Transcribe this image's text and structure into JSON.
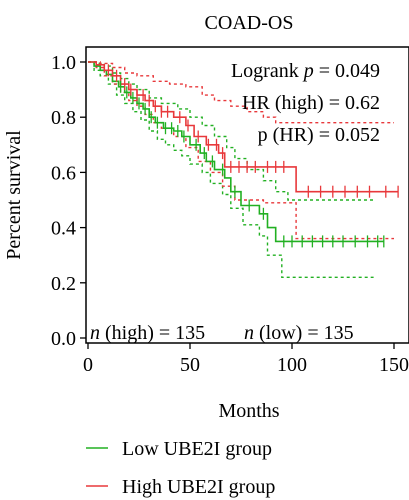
{
  "chart_data": {
    "type": "line",
    "title": "COAD-OS",
    "xlabel": "Months",
    "ylabel": "Percent survival",
    "xlim": [
      0,
      155
    ],
    "ylim": [
      0.0,
      1.02
    ],
    "xticks": [
      0,
      50,
      100,
      150
    ],
    "yticks": [
      0.0,
      0.2,
      0.4,
      0.6,
      0.8,
      1.0
    ],
    "ytick_labels": [
      "0.0",
      "0.2",
      "0.4",
      "0.6",
      "0.8",
      "1.0"
    ],
    "grid": false,
    "legend_position": "bottom",
    "annotations": {
      "logrank_prefix": "Logrank ",
      "logrank_p": "p",
      "logrank_value": " = 0.049",
      "hr": "HR (high) = 0.62",
      "p_hr": "p (HR) = 0.052",
      "n_high_n": "n",
      "n_high_text": " (high) = 135",
      "n_low_n": "n",
      "n_low_text": " (low) = 135"
    },
    "series": [
      {
        "name": "Low UBE2I group",
        "color": "#22b022",
        "survival": [
          [
            0,
            1.0
          ],
          [
            3,
            0.985
          ],
          [
            6,
            0.97
          ],
          [
            9,
            0.955
          ],
          [
            12,
            0.93
          ],
          [
            15,
            0.91
          ],
          [
            18,
            0.89
          ],
          [
            21,
            0.87
          ],
          [
            24,
            0.85
          ],
          [
            27,
            0.83
          ],
          [
            30,
            0.8
          ],
          [
            33,
            0.78
          ],
          [
            37,
            0.76
          ],
          [
            42,
            0.75
          ],
          [
            46,
            0.73
          ],
          [
            50,
            0.7
          ],
          [
            55,
            0.67
          ],
          [
            58,
            0.64
          ],
          [
            62,
            0.61
          ],
          [
            67,
            0.58
          ],
          [
            70,
            0.53
          ],
          [
            75,
            0.48
          ],
          [
            84,
            0.45
          ],
          [
            88,
            0.4
          ],
          [
            92,
            0.35
          ],
          [
            145,
            0.35
          ]
        ],
        "ci_upper": [
          [
            0,
            1.0
          ],
          [
            4,
            0.995
          ],
          [
            8,
            0.985
          ],
          [
            12,
            0.96
          ],
          [
            16,
            0.94
          ],
          [
            20,
            0.92
          ],
          [
            24,
            0.9
          ],
          [
            30,
            0.87
          ],
          [
            36,
            0.85
          ],
          [
            44,
            0.83
          ],
          [
            50,
            0.8
          ],
          [
            56,
            0.77
          ],
          [
            62,
            0.73
          ],
          [
            68,
            0.69
          ],
          [
            72,
            0.65
          ],
          [
            78,
            0.61
          ],
          [
            86,
            0.57
          ],
          [
            92,
            0.53
          ],
          [
            98,
            0.5
          ],
          [
            140,
            0.5
          ]
        ],
        "ci_lower": [
          [
            0,
            1.0
          ],
          [
            3,
            0.97
          ],
          [
            6,
            0.95
          ],
          [
            10,
            0.92
          ],
          [
            14,
            0.88
          ],
          [
            18,
            0.85
          ],
          [
            22,
            0.82
          ],
          [
            26,
            0.79
          ],
          [
            30,
            0.75
          ],
          [
            34,
            0.72
          ],
          [
            38,
            0.7
          ],
          [
            42,
            0.68
          ],
          [
            46,
            0.66
          ],
          [
            50,
            0.63
          ],
          [
            56,
            0.6
          ],
          [
            60,
            0.56
          ],
          [
            66,
            0.52
          ],
          [
            70,
            0.47
          ],
          [
            76,
            0.41
          ],
          [
            84,
            0.37
          ],
          [
            88,
            0.3
          ],
          [
            95,
            0.22
          ],
          [
            140,
            0.22
          ]
        ],
        "censor_x": [
          16,
          19,
          22,
          25,
          28,
          31,
          34,
          38,
          41,
          44,
          47,
          53,
          57,
          61,
          66,
          72,
          79,
          86,
          96,
          100,
          105,
          110,
          115,
          120,
          125,
          131,
          137,
          142,
          145
        ]
      },
      {
        "name": "High UBE2I group",
        "color": "#e8383b",
        "survival": [
          [
            0,
            1.0
          ],
          [
            4,
            0.99
          ],
          [
            8,
            0.97
          ],
          [
            12,
            0.95
          ],
          [
            16,
            0.92
          ],
          [
            20,
            0.9
          ],
          [
            24,
            0.88
          ],
          [
            28,
            0.86
          ],
          [
            32,
            0.84
          ],
          [
            36,
            0.82
          ],
          [
            42,
            0.8
          ],
          [
            48,
            0.77
          ],
          [
            52,
            0.73
          ],
          [
            58,
            0.7
          ],
          [
            64,
            0.67
          ],
          [
            67,
            0.62
          ],
          [
            86,
            0.62
          ],
          [
            102,
            0.53
          ],
          [
            152,
            0.53
          ]
        ],
        "ci_upper": [
          [
            0,
            1.0
          ],
          [
            6,
            0.995
          ],
          [
            12,
            0.98
          ],
          [
            18,
            0.96
          ],
          [
            24,
            0.95
          ],
          [
            32,
            0.93
          ],
          [
            40,
            0.92
          ],
          [
            48,
            0.91
          ],
          [
            56,
            0.88
          ],
          [
            62,
            0.86
          ],
          [
            70,
            0.84
          ],
          [
            78,
            0.82
          ],
          [
            86,
            0.8
          ],
          [
            92,
            0.78
          ],
          [
            150,
            0.78
          ]
        ],
        "ci_lower": [
          [
            0,
            1.0
          ],
          [
            4,
            0.98
          ],
          [
            8,
            0.95
          ],
          [
            12,
            0.92
          ],
          [
            16,
            0.89
          ],
          [
            20,
            0.86
          ],
          [
            24,
            0.84
          ],
          [
            28,
            0.81
          ],
          [
            32,
            0.78
          ],
          [
            36,
            0.76
          ],
          [
            42,
            0.73
          ],
          [
            48,
            0.69
          ],
          [
            54,
            0.64
          ],
          [
            60,
            0.6
          ],
          [
            66,
            0.55
          ],
          [
            72,
            0.5
          ],
          [
            86,
            0.49
          ],
          [
            98,
            0.49
          ],
          [
            102,
            0.36
          ],
          [
            150,
            0.36
          ]
        ],
        "censor_x": [
          10,
          14,
          18,
          21,
          24,
          27,
          30,
          33,
          36,
          39,
          45,
          49,
          54,
          59,
          63,
          66,
          70,
          74,
          78,
          82,
          88,
          92,
          96,
          108,
          114,
          120,
          126,
          132,
          138,
          146,
          152
        ]
      }
    ]
  },
  "legend": {
    "items": [
      {
        "label": "Low UBE2I group",
        "color": "#22b022"
      },
      {
        "label": "High UBE2I group",
        "color": "#e8383b"
      }
    ]
  }
}
